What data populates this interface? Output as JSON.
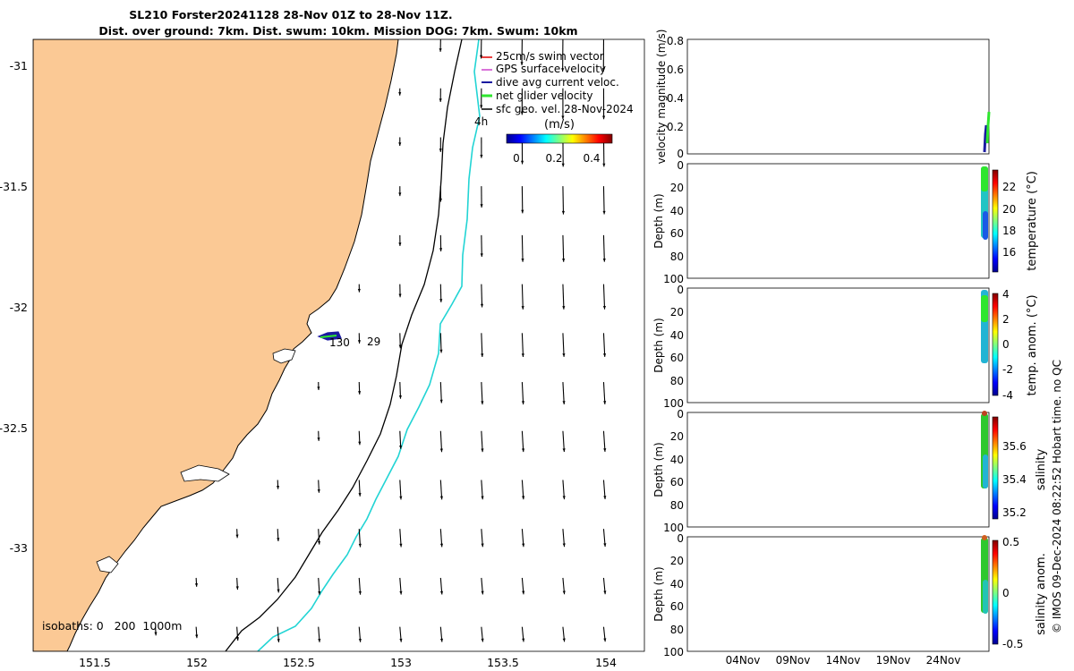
{
  "title": {
    "line1": "SL210 Forster20241128 28-Nov 01Z to 28-Nov 11Z.",
    "line2": "Dist. over ground: 7km. Dist. swum: 10km. Mission DOG: 7km. Swum: 10km"
  },
  "footer_note": "© IMOS 09-Dec-2024 08:22:52 Hobart time. no QC",
  "colors": {
    "land": "#fbc995",
    "isobath_200": "#000000",
    "isobath_1000": "#22d4d4",
    "net_glider_velocity": "#2ee62e",
    "swim_vector": "#e00000",
    "gps_velocity": "#cc44cc",
    "dive_avg_current": "#1a1aa0"
  },
  "chart_data": [
    {
      "id": "map",
      "type": "scatter",
      "xlim": [
        151.2,
        154.2
      ],
      "ylim": [
        -33.4,
        -30.9
      ],
      "x_ticks": [
        "151.5",
        "152",
        "152.5",
        "153",
        "153.5",
        "154"
      ],
      "y_ticks": [
        "-31",
        "-31.5",
        "-32",
        "-32.5",
        "-33"
      ],
      "legend": [
        "25cm/s swim vector",
        "GPS surface velocity",
        "dive avg current veloc.",
        "net glider velocity",
        "sfc geo. vel. 28-Nov-2024"
      ],
      "legend_location": "top-right",
      "colorbar_label": "(m/s)",
      "colorbar_ticks": [
        "0",
        "0.2",
        "0.4"
      ],
      "colorbar_range": [
        0,
        0.5
      ],
      "isobath_label": "isobaths: 0   200  1000m",
      "time_marker_label": "4h",
      "track_labels": [
        {
          "text": "130",
          "x": 152.68,
          "y": -32.15
        },
        {
          "text": "29",
          "x": 152.85,
          "y": -32.15
        }
      ],
      "glider_track": [
        [
          152.55,
          -32.12
        ],
        [
          152.6,
          -32.13
        ],
        [
          152.65,
          -32.125
        ]
      ],
      "arrow_grid": {
        "lons": [
          151.8,
          152.0,
          152.2,
          152.4,
          152.6,
          152.8,
          153.0,
          153.2,
          153.4,
          153.6,
          153.8,
          154.0
        ],
        "lats": [
          -30.9,
          -31.1,
          -31.3,
          -31.5,
          -31.7,
          -31.9,
          -32.1,
          -32.3,
          -32.5,
          -32.7,
          -32.9,
          -33.1,
          -33.3
        ]
      }
    },
    {
      "id": "velocity",
      "type": "line",
      "ylabel": "velocity magnitude (m/s)",
      "ylim": [
        0,
        0.8
      ],
      "y_ticks": [
        "0",
        "0.2",
        "0.4",
        "0.6",
        "0.8"
      ]
    },
    {
      "id": "temperature",
      "type": "scatter",
      "ylabel": "Depth (m)",
      "ylim": [
        100,
        0
      ],
      "y_ticks": [
        "0",
        "20",
        "40",
        "60",
        "80",
        "100"
      ],
      "colorbar_label": "temperature (°C)",
      "colorbar_ticks": [
        "22",
        "20",
        "18",
        "16"
      ],
      "colorbar_range": [
        14.5,
        23.8
      ]
    },
    {
      "id": "temp_anom",
      "type": "scatter",
      "ylabel": "Depth (m)",
      "ylim": [
        100,
        0
      ],
      "y_ticks": [
        "0",
        "20",
        "40",
        "60",
        "80",
        "100"
      ],
      "colorbar_label": "temp. anom. (°C)",
      "colorbar_ticks": [
        "4",
        "2",
        "0",
        "-2",
        "-4"
      ],
      "colorbar_range": [
        -4,
        4
      ]
    },
    {
      "id": "salinity",
      "type": "scatter",
      "ylabel": "Depth (m)",
      "ylim": [
        100,
        0
      ],
      "y_ticks": [
        "0",
        "20",
        "40",
        "60",
        "80",
        "100"
      ],
      "colorbar_label": "salinity",
      "colorbar_ticks": [
        "35.6",
        "35.4",
        "35.2"
      ],
      "colorbar_range": [
        35.13,
        35.75
      ]
    },
    {
      "id": "sal_anom",
      "type": "scatter",
      "ylabel": "Depth (m)",
      "ylim": [
        100,
        0
      ],
      "y_ticks": [
        "0",
        "20",
        "40",
        "60",
        "80",
        "100"
      ],
      "colorbar_label": "salinity anom.",
      "colorbar_ticks": [
        "0.5",
        "0",
        "-0.5"
      ],
      "colorbar_range": [
        -0.5,
        0.5
      ],
      "x_ticks": [
        "04Nov",
        "09Nov",
        "14Nov",
        "19Nov",
        "24Nov"
      ]
    }
  ]
}
